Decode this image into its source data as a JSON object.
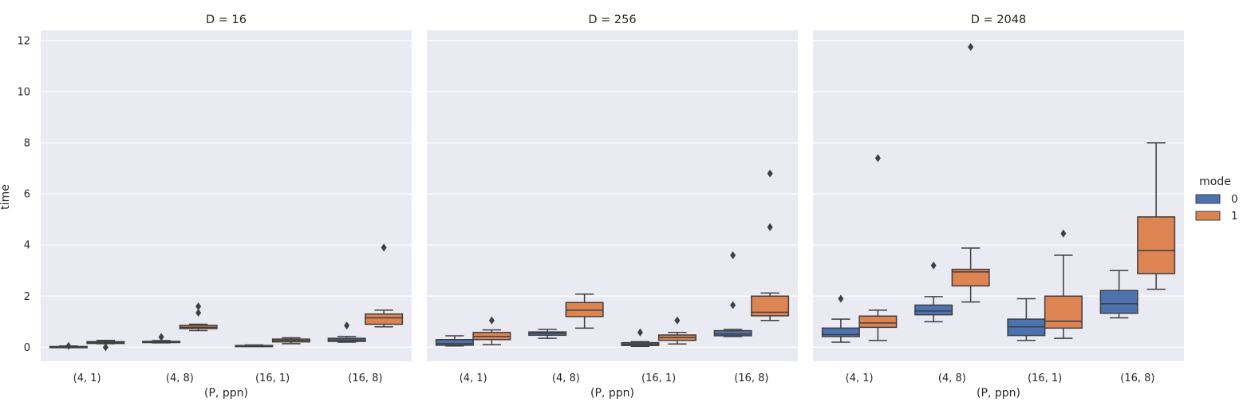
{
  "chart_data": {
    "type": "box",
    "ylabel": "time",
    "xlabel": "(P, ppn)",
    "ylim": [
      -0.55,
      12.4
    ],
    "yticks": [
      0,
      2,
      4,
      6,
      8,
      10,
      12
    ],
    "grid": true,
    "categories": [
      "(4, 1)",
      "(4, 8)",
      "(16, 1)",
      "(16, 8)"
    ],
    "legend": {
      "title": "mode",
      "placement": "right",
      "entries": [
        {
          "label": "0",
          "color": "#4c72b0"
        },
        {
          "label": "1",
          "color": "#dd8452"
        }
      ]
    },
    "panels": [
      {
        "title": "D = 16",
        "boxes": [
          {
            "category": "(4, 1)",
            "mode": "0",
            "whisker_low": 0.0,
            "q1": 0.01,
            "median": 0.02,
            "q3": 0.03,
            "whisker_high": 0.05,
            "outliers": [
              0.05
            ]
          },
          {
            "category": "(4, 1)",
            "mode": "1",
            "whisker_low": 0.14,
            "q1": 0.15,
            "median": 0.18,
            "q3": 0.22,
            "whisker_high": 0.27,
            "outliers": [
              0.0
            ]
          },
          {
            "category": "(4, 8)",
            "mode": "0",
            "whisker_low": 0.17,
            "q1": 0.19,
            "median": 0.21,
            "q3": 0.23,
            "whisker_high": 0.26,
            "outliers": [
              0.4
            ]
          },
          {
            "category": "(4, 8)",
            "mode": "1",
            "whisker_low": 0.65,
            "q1": 0.73,
            "median": 0.78,
            "q3": 0.86,
            "whisker_high": 0.9,
            "outliers": [
              1.35,
              1.6
            ]
          },
          {
            "category": "(16, 1)",
            "mode": "0",
            "whisker_low": 0.03,
            "q1": 0.04,
            "median": 0.05,
            "q3": 0.07,
            "whisker_high": 0.09,
            "outliers": []
          },
          {
            "category": "(16, 1)",
            "mode": "1",
            "whisker_low": 0.14,
            "q1": 0.21,
            "median": 0.27,
            "q3": 0.32,
            "whisker_high": 0.37,
            "outliers": []
          },
          {
            "category": "(16, 8)",
            "mode": "0",
            "whisker_low": 0.2,
            "q1": 0.23,
            "median": 0.28,
            "q3": 0.35,
            "whisker_high": 0.42,
            "outliers": [
              0.85
            ]
          },
          {
            "category": "(16, 8)",
            "mode": "1",
            "whisker_low": 0.8,
            "q1": 0.9,
            "median": 1.15,
            "q3": 1.3,
            "whisker_high": 1.45,
            "outliers": [
              3.9
            ]
          }
        ]
      },
      {
        "title": "D = 256",
        "boxes": [
          {
            "category": "(4, 1)",
            "mode": "0",
            "whisker_low": 0.05,
            "q1": 0.08,
            "median": 0.14,
            "q3": 0.3,
            "whisker_high": 0.45,
            "outliers": []
          },
          {
            "category": "(4, 1)",
            "mode": "1",
            "whisker_low": 0.1,
            "q1": 0.3,
            "median": 0.42,
            "q3": 0.58,
            "whisker_high": 0.68,
            "outliers": [
              1.05
            ]
          },
          {
            "category": "(4, 8)",
            "mode": "0",
            "whisker_low": 0.35,
            "q1": 0.47,
            "median": 0.55,
            "q3": 0.6,
            "whisker_high": 0.7,
            "outliers": []
          },
          {
            "category": "(4, 8)",
            "mode": "1",
            "whisker_low": 0.75,
            "q1": 1.2,
            "median": 1.45,
            "q3": 1.75,
            "whisker_high": 2.08,
            "outliers": []
          },
          {
            "category": "(16, 1)",
            "mode": "0",
            "whisker_low": 0.03,
            "q1": 0.07,
            "median": 0.12,
            "q3": 0.18,
            "whisker_high": 0.22,
            "outliers": [
              0.58
            ]
          },
          {
            "category": "(16, 1)",
            "mode": "1",
            "whisker_low": 0.13,
            "q1": 0.27,
            "median": 0.38,
            "q3": 0.48,
            "whisker_high": 0.58,
            "outliers": [
              1.05
            ]
          },
          {
            "category": "(16, 8)",
            "mode": "0",
            "whisker_low": 0.42,
            "q1": 0.45,
            "median": 0.52,
            "q3": 0.65,
            "whisker_high": 0.7,
            "outliers": [
              1.65,
              3.6
            ]
          },
          {
            "category": "(16, 8)",
            "mode": "1",
            "whisker_low": 1.05,
            "q1": 1.23,
            "median": 1.37,
            "q3": 2.0,
            "whisker_high": 2.12,
            "outliers": [
              4.7,
              6.8
            ]
          }
        ]
      },
      {
        "title": "D = 2048",
        "boxes": [
          {
            "category": "(4, 1)",
            "mode": "0",
            "whisker_low": 0.2,
            "q1": 0.42,
            "median": 0.5,
            "q3": 0.75,
            "whisker_high": 1.1,
            "outliers": [
              1.9
            ]
          },
          {
            "category": "(4, 1)",
            "mode": "1",
            "whisker_low": 0.27,
            "q1": 0.78,
            "median": 0.95,
            "q3": 1.22,
            "whisker_high": 1.45,
            "outliers": [
              7.4
            ]
          },
          {
            "category": "(4, 8)",
            "mode": "0",
            "whisker_low": 1.0,
            "q1": 1.27,
            "median": 1.42,
            "q3": 1.65,
            "whisker_high": 1.98,
            "outliers": [
              3.2
            ]
          },
          {
            "category": "(4, 8)",
            "mode": "1",
            "whisker_low": 1.77,
            "q1": 2.4,
            "median": 2.95,
            "q3": 3.05,
            "whisker_high": 3.88,
            "outliers": [
              11.75
            ]
          },
          {
            "category": "(16, 1)",
            "mode": "0",
            "whisker_low": 0.27,
            "q1": 0.46,
            "median": 0.8,
            "q3": 1.1,
            "whisker_high": 1.9,
            "outliers": []
          },
          {
            "category": "(16, 1)",
            "mode": "1",
            "whisker_low": 0.35,
            "q1": 0.75,
            "median": 1.02,
            "q3": 2.0,
            "whisker_high": 3.6,
            "outliers": [
              4.45
            ]
          },
          {
            "category": "(16, 8)",
            "mode": "0",
            "whisker_low": 1.15,
            "q1": 1.33,
            "median": 1.7,
            "q3": 2.22,
            "whisker_high": 3.0,
            "outliers": []
          },
          {
            "category": "(16, 8)",
            "mode": "1",
            "whisker_low": 2.27,
            "q1": 2.88,
            "median": 3.78,
            "q3": 5.1,
            "whisker_high": 8.0,
            "outliers": []
          }
        ]
      }
    ]
  }
}
